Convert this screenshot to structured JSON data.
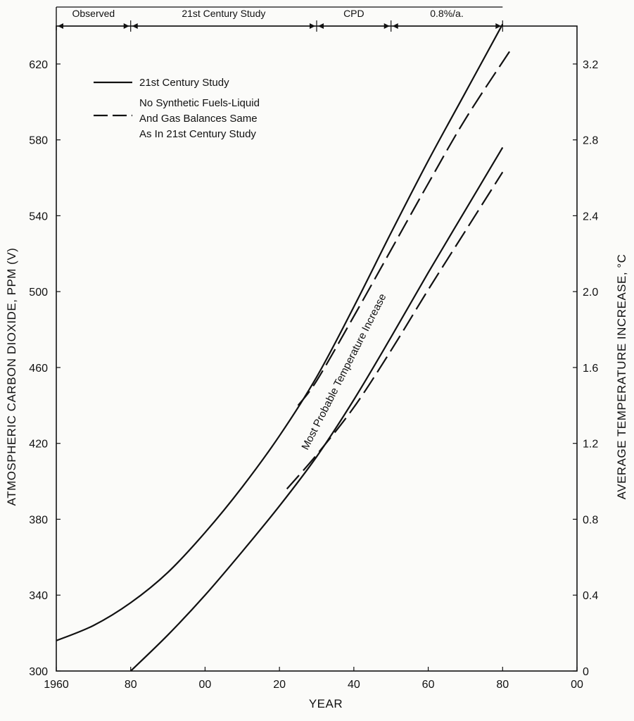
{
  "chart_data": {
    "type": "line",
    "x_axis": {
      "label": "YEAR",
      "ticks": [
        1960,
        1980,
        2000,
        2020,
        2040,
        2060,
        2080,
        2100
      ],
      "tick_labels": [
        "1960",
        "80",
        "00",
        "20",
        "40",
        "60",
        "80",
        "00"
      ],
      "range": [
        1960,
        2100
      ]
    },
    "y_axis_left": {
      "label": "ATMOSPHERIC CARBON DIOXIDE, PPM (V)",
      "ticks": [
        300,
        340,
        380,
        420,
        460,
        500,
        540,
        580,
        620
      ],
      "range": [
        300,
        640
      ]
    },
    "y_axis_right": {
      "label": "AVERAGE TEMPERATURE INCREASE, °C",
      "ticks": [
        0,
        0.4,
        0.8,
        1.2,
        1.6,
        2.0,
        2.4,
        2.8,
        3.2
      ],
      "tick_labels": [
        "0",
        "0.4",
        "0.8",
        "1.2",
        "1.6",
        "2.0",
        "2.4",
        "2.8",
        "3.2"
      ],
      "range": [
        0,
        3.4
      ]
    },
    "periods": [
      {
        "label": "Observed",
        "start": 1960,
        "end": 1980
      },
      {
        "label": "21st Century Study",
        "start": 1980,
        "end": 2030
      },
      {
        "label": "CPD",
        "start": 2030,
        "end": 2050
      },
      {
        "label": "0.8%/a.",
        "start": 2050,
        "end": 2080
      }
    ],
    "legend": [
      {
        "label": "21st Century Study",
        "style": "solid"
      },
      {
        "label_lines": [
          "No Synthetic Fuels-Liquid",
          "And Gas Balances Same",
          "As In 21st Century Study"
        ],
        "style": "dashed"
      }
    ],
    "series": [
      {
        "axis": "left",
        "style": "solid",
        "x": [
          1960,
          1970,
          1980,
          1990,
          2000,
          2010,
          2020,
          2030,
          2040,
          2050,
          2060,
          2070,
          2080
        ],
        "values": [
          316,
          324,
          336,
          352,
          373,
          397,
          424,
          455,
          492,
          531,
          569,
          605,
          641
        ]
      },
      {
        "axis": "left",
        "style": "dashed",
        "x": [
          2025,
          2030,
          2040,
          2050,
          2060,
          2070,
          2082
        ],
        "values": [
          440,
          453,
          487,
          522,
          557,
          591,
          627
        ]
      },
      {
        "axis": "right",
        "style": "solid",
        "x": [
          1980,
          1990,
          2000,
          2010,
          2020,
          2030,
          2040,
          2050,
          2060,
          2070,
          2080
        ],
        "values": [
          0.0,
          0.19,
          0.4,
          0.63,
          0.87,
          1.13,
          1.43,
          1.76,
          2.1,
          2.43,
          2.76
        ]
      },
      {
        "axis": "right",
        "style": "dashed",
        "x": [
          2022,
          2030,
          2040,
          2050,
          2060,
          2070,
          2080
        ],
        "values": [
          0.96,
          1.14,
          1.39,
          1.69,
          2.01,
          2.32,
          2.63
        ]
      }
    ],
    "annotation": "Most Probable Temperature Increase",
    "grid": false
  }
}
